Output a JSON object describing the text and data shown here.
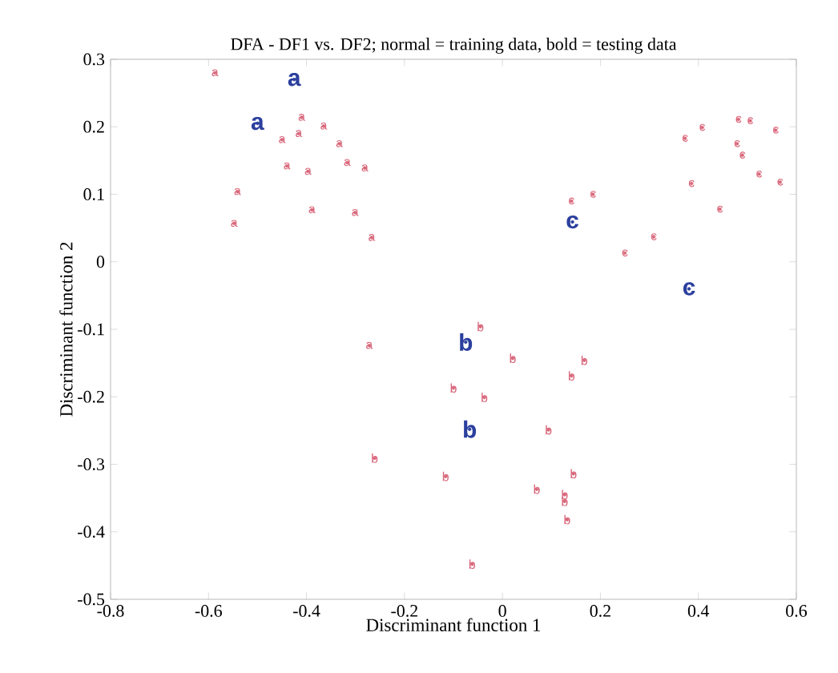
{
  "chart_data": {
    "type": "scatter",
    "title": "DFA - DF1 vs. DF2; normal = training data, bold = testing data",
    "xlabel": "Discriminant function 1",
    "ylabel": "Discriminant function 2",
    "xlim": [
      -0.8,
      0.6
    ],
    "ylim": [
      -0.5,
      0.3
    ],
    "xticks": [
      -0.8,
      -0.6,
      -0.4,
      -0.2,
      0,
      0.2,
      0.4,
      0.6
    ],
    "yticks": [
      -0.5,
      -0.4,
      -0.3,
      -0.2,
      -0.1,
      0,
      0.1,
      0.2,
      0.3
    ],
    "marker": "none",
    "series": [
      {
        "color": "#d9667a",
        "x": [
          -0.587,
          -0.41,
          -0.365,
          -0.416,
          -0.45,
          -0.333,
          -0.317,
          -0.281,
          -0.44,
          -0.397,
          -0.541,
          -0.389,
          -0.301,
          -0.548,
          -0.267,
          -0.272
        ],
        "values": [
          0.28,
          0.214,
          0.201,
          0.19,
          0.181,
          0.175,
          0.147,
          0.139,
          0.142,
          0.134,
          0.104,
          0.077,
          0.073,
          0.057,
          0.036,
          -0.124
        ],
        "value_labels": [
          "a",
          "a",
          "a",
          "a",
          "a",
          "a",
          "a",
          "a",
          "a",
          "a",
          "a",
          "a",
          "a",
          "a",
          "a",
          "a"
        ]
      },
      {
        "color": "#d9667a",
        "x": [
          -0.045,
          0.021,
          0.167,
          0.141,
          -0.1,
          -0.037,
          0.094,
          -0.261,
          -0.116,
          0.145,
          0.07,
          0.127,
          0.127,
          0.132,
          -0.062
        ],
        "values": [
          -0.096,
          -0.143,
          -0.146,
          -0.169,
          -0.187,
          -0.201,
          -0.249,
          -0.291,
          -0.318,
          -0.314,
          -0.337,
          -0.345,
          -0.355,
          -0.382,
          -0.448
        ],
        "value_labels": [
          "b",
          "b",
          "b",
          "b",
          "b",
          "b",
          "b",
          "b",
          "b",
          "b",
          "b",
          "b",
          "b",
          "b",
          "b"
        ]
      },
      {
        "color": "#d9667a",
        "x": [
          0.141,
          0.185,
          0.25,
          0.309,
          0.373,
          0.408,
          0.482,
          0.506,
          0.558,
          0.479,
          0.49,
          0.524,
          0.567,
          0.386,
          0.444
        ],
        "values": [
          0.09,
          0.1,
          0.013,
          0.037,
          0.183,
          0.199,
          0.211,
          0.209,
          0.195,
          0.175,
          0.158,
          0.13,
          0.118,
          0.116,
          0.078
        ],
        "value_labels": [
          "c",
          "c",
          "c",
          "c",
          "c",
          "c",
          "c",
          "c",
          "c",
          "c",
          "c",
          "c",
          "c",
          "c",
          "c"
        ]
      },
      {
        "color": "#2b3f9e",
        "x": [
          -0.425,
          -0.5
        ],
        "values": [
          0.27,
          0.205
        ],
        "value_labels": [
          "**a**",
          "**a**"
        ]
      },
      {
        "color": "#2b3f9e",
        "x": [
          -0.075,
          -0.067
        ],
        "values": [
          -0.119,
          -0.248
        ],
        "value_labels": [
          "**b**",
          "**b**"
        ]
      },
      {
        "color": "#2b3f9e",
        "x": [
          0.143,
          0.381
        ],
        "values": [
          0.059,
          -0.04
        ],
        "value_labels": [
          "**c**",
          "**c**"
        ]
      }
    ]
  }
}
